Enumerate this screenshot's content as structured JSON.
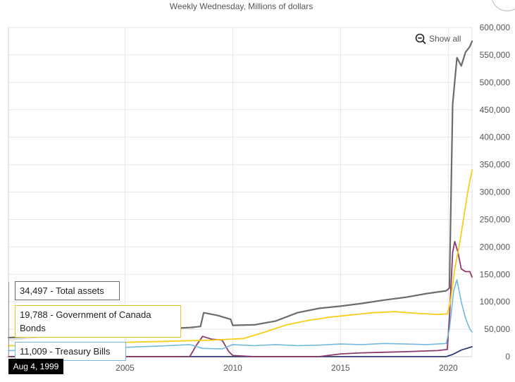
{
  "subtitle": "Weekly Wednesday, Millions of dollars",
  "show_all_label": "Show all",
  "tooltips": {
    "total_assets": "34,497 - Total assets",
    "goc_bonds": "19,788 - Government of Canada Bonds",
    "treasury_bills": "11,009 - Treasury Bills"
  },
  "date_label": "Aug 4, 1999",
  "colors": {
    "total_assets": "#6b6e66",
    "goc_bonds": "#f5cf1a",
    "treasury_bills": "#74b9dd",
    "purple": "#8a3a6e",
    "navy": "#2f3b73",
    "light_gray": "#d9d9d9",
    "grid": "#e6e6e6"
  },
  "chart_data": {
    "type": "line",
    "title": "Weekly Wednesday, Millions of dollars",
    "xlabel": "",
    "ylabel": "",
    "xlim": [
      1999.59,
      2021.1
    ],
    "ylim": [
      0,
      600000
    ],
    "x_ticks": [
      {
        "value": 2005,
        "label": "2005"
      },
      {
        "value": 2010,
        "label": "2010"
      },
      {
        "value": 2015,
        "label": "2015"
      },
      {
        "value": 2020,
        "label": "2020"
      }
    ],
    "y_ticks": [
      {
        "value": 0,
        "label": "0"
      },
      {
        "value": 50000,
        "label": "50,000"
      },
      {
        "value": 100000,
        "label": "100,000"
      },
      {
        "value": 150000,
        "label": "150,000"
      },
      {
        "value": 200000,
        "label": "200,000"
      },
      {
        "value": 250000,
        "label": "250,000"
      },
      {
        "value": 300000,
        "label": "300,000"
      },
      {
        "value": 350000,
        "label": "350,000"
      },
      {
        "value": 400000,
        "label": "400,000"
      },
      {
        "value": 450000,
        "label": "450,000"
      },
      {
        "value": 500000,
        "label": "500,000"
      },
      {
        "value": 550000,
        "label": "550,000"
      },
      {
        "value": 600000,
        "label": "600,000"
      }
    ],
    "y_axis_position": "right",
    "grid": true,
    "series": [
      {
        "name": "Total assets",
        "color": "#6b6e66",
        "width": 2.2,
        "x": [
          1999.59,
          2001,
          2003,
          2005,
          2007,
          2008.0,
          2008.5,
          2008.65,
          2009.3,
          2009.9,
          2010.0,
          2011,
          2012,
          2013,
          2014,
          2015,
          2016,
          2017,
          2018,
          2019,
          2019.9,
          2020.05,
          2020.2,
          2020.4,
          2020.6,
          2020.8,
          2021.0,
          2021.1
        ],
        "values": [
          34497,
          37000,
          42000,
          48000,
          51000,
          53000,
          55000,
          80000,
          75000,
          68000,
          57000,
          58000,
          65000,
          80000,
          88000,
          92000,
          97000,
          103000,
          108000,
          115000,
          120000,
          125000,
          460000,
          545000,
          530000,
          555000,
          565000,
          575000
        ]
      },
      {
        "name": "Government of Canada Bonds",
        "color": "#f5cf1a",
        "width": 1.8,
        "x": [
          1999.59,
          2003,
          2007,
          2009,
          2010.5,
          2011.5,
          2012.5,
          2013.5,
          2014.5,
          2015.5,
          2016.5,
          2017.5,
          2018.5,
          2019.5,
          2019.95,
          2020.1,
          2020.3,
          2020.5,
          2020.7,
          2020.9,
          2021.1
        ],
        "values": [
          19788,
          24000,
          28000,
          30000,
          33000,
          45000,
          58000,
          66000,
          72000,
          76000,
          80000,
          82000,
          79000,
          77000,
          78000,
          100000,
          160000,
          200000,
          250000,
          300000,
          340000
        ]
      },
      {
        "name": "Treasury Bills",
        "color": "#74b9dd",
        "width": 1.6,
        "x": [
          1999.59,
          2001,
          2003,
          2005,
          2007,
          2008.0,
          2008.6,
          2009.5,
          2010,
          2011,
          2012,
          2013,
          2014,
          2015,
          2016,
          2017,
          2018,
          2019,
          2019.9,
          2020.05,
          2020.25,
          2020.4,
          2020.6,
          2020.8,
          2021.0,
          2021.1
        ],
        "values": [
          11009,
          12000,
          15000,
          17000,
          20000,
          22000,
          15000,
          14000,
          22000,
          20000,
          22000,
          20000,
          21000,
          23000,
          22000,
          24000,
          23000,
          22000,
          24000,
          50000,
          120000,
          140000,
          100000,
          70000,
          50000,
          45000
        ]
      },
      {
        "name": "Purple series",
        "color": "#8a3a6e",
        "width": 1.8,
        "x": [
          1999.59,
          2008.0,
          2008.3,
          2008.6,
          2009.0,
          2009.5,
          2009.8,
          2010.0,
          2011,
          2012,
          2013,
          2014,
          2015,
          2016,
          2017,
          2018,
          2019.5,
          2019.95,
          2020.05,
          2020.2,
          2020.3,
          2020.45,
          2020.6,
          2020.8,
          2021.0,
          2021.1
        ],
        "values": [
          0,
          0,
          20000,
          37000,
          32000,
          30000,
          10000,
          2000,
          0,
          0,
          0,
          0,
          5000,
          7000,
          8000,
          9000,
          11000,
          13000,
          70000,
          190000,
          210000,
          190000,
          160000,
          155000,
          155000,
          145000
        ]
      },
      {
        "name": "Light gray series",
        "color": "#d9d9d9",
        "width": 1.4,
        "x": [
          1999.59,
          2001,
          2003,
          2005,
          2007,
          2008.0,
          2008.2
        ],
        "values": [
          30000,
          35000,
          42000,
          46000,
          50000,
          52000,
          51000
        ]
      },
      {
        "name": "Navy series",
        "color": "#2f3b73",
        "width": 1.8,
        "x": [
          1999.59,
          2019.9,
          2020.2,
          2020.6,
          2021.1
        ],
        "values": [
          0,
          0,
          4000,
          12000,
          18000
        ]
      }
    ]
  }
}
